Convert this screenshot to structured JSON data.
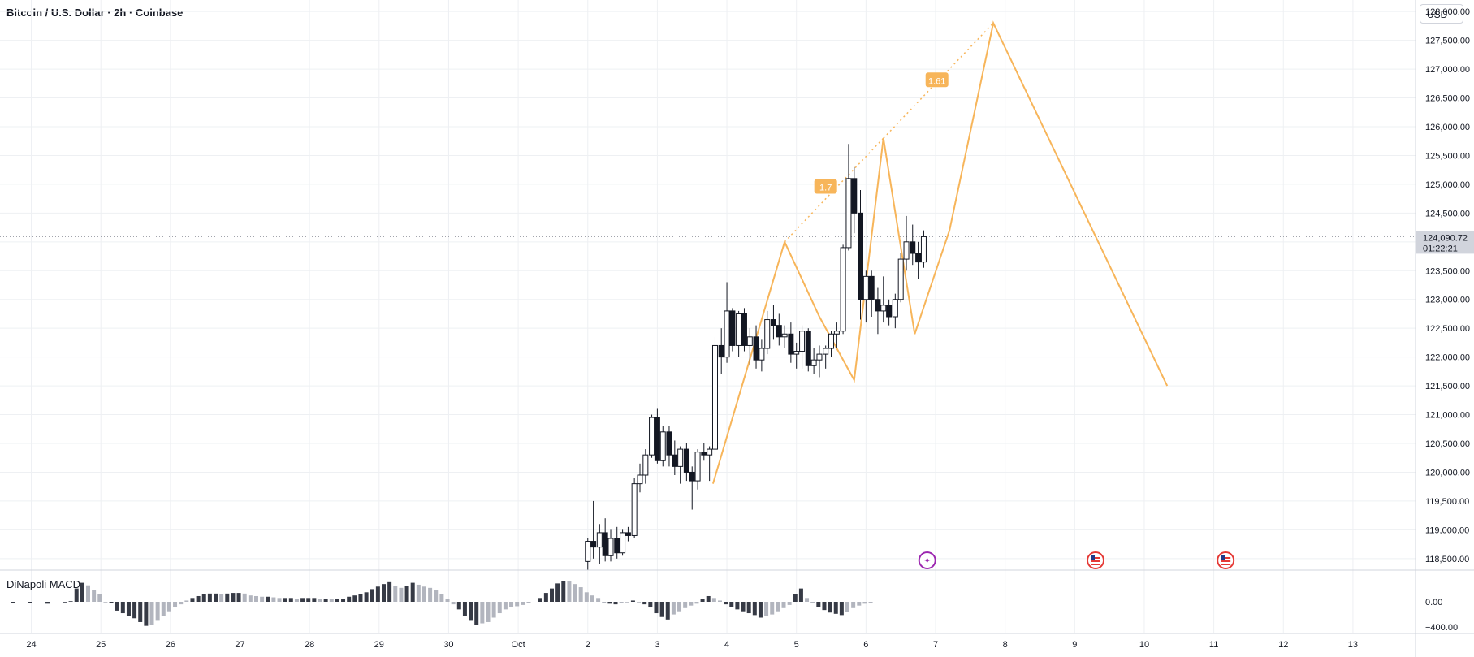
{
  "header": {
    "title": "Bitcoin / U.S. Dollar · 2h · Coinbase"
  },
  "currency_button": "USD",
  "indicator": {
    "label": "DiNapoli MACD"
  },
  "price_marker": {
    "price": "124,090.72",
    "countdown": "01:22:21"
  },
  "colors": {
    "pattern": "#f7b55a",
    "up": "#ffffff",
    "down": "#131722",
    "hist_dark": "#363a45",
    "hist_light": "#b2b5be",
    "grid": "#eef0f3"
  },
  "chart_data": [
    {
      "type": "candlestick",
      "title": "Bitcoin / U.S. Dollar · 2h · Coinbase",
      "y_ticks": [
        "128,000.00",
        "127,500.00",
        "127,000.00",
        "126,500.00",
        "126,000.00",
        "125,500.00",
        "125,000.00",
        "124,500.00",
        "124,000.00",
        "123,500.00",
        "123,000.00",
        "122,500.00",
        "122,000.00",
        "121,500.00",
        "121,000.00",
        "120,500.00",
        "120,000.00",
        "119,500.00",
        "119,000.00",
        "118,500.00"
      ],
      "y_range": [
        118300,
        128200
      ],
      "x_ticks": [
        "24",
        "25",
        "26",
        "27",
        "28",
        "29",
        "30",
        "Oct",
        "2",
        "3",
        "4",
        "5",
        "6",
        "7",
        "8",
        "9",
        "10",
        "11",
        "12",
        "13"
      ],
      "x_tick_values": [
        24,
        25,
        26,
        27,
        28,
        29,
        30,
        31,
        32,
        33,
        34,
        35,
        36,
        37,
        38,
        39,
        40,
        41,
        42,
        43
      ],
      "x_range": [
        23.55,
        43.9
      ],
      "grid": true,
      "candles": [
        {
          "x": 32.0,
          "o": 118450,
          "h": 118850,
          "l": 118300,
          "c": 118800
        },
        {
          "x": 32.08,
          "o": 118800,
          "h": 119500,
          "l": 118500,
          "c": 118700
        },
        {
          "x": 32.17,
          "o": 118700,
          "h": 119100,
          "l": 118400,
          "c": 118950
        },
        {
          "x": 32.25,
          "o": 118950,
          "h": 119200,
          "l": 118450,
          "c": 118550
        },
        {
          "x": 32.33,
          "o": 118550,
          "h": 119000,
          "l": 118450,
          "c": 118850
        },
        {
          "x": 32.42,
          "o": 118850,
          "h": 119050,
          "l": 118500,
          "c": 118600
        },
        {
          "x": 32.5,
          "o": 118600,
          "h": 119000,
          "l": 118550,
          "c": 118950
        },
        {
          "x": 32.58,
          "o": 118950,
          "h": 119050,
          "l": 118800,
          "c": 118900
        },
        {
          "x": 32.67,
          "o": 118900,
          "h": 119900,
          "l": 118850,
          "c": 119800
        },
        {
          "x": 32.75,
          "o": 119800,
          "h": 120150,
          "l": 119650,
          "c": 119950
        },
        {
          "x": 32.83,
          "o": 119950,
          "h": 120400,
          "l": 119800,
          "c": 120300
        },
        {
          "x": 32.92,
          "o": 120300,
          "h": 121000,
          "l": 120250,
          "c": 120950
        },
        {
          "x": 33.0,
          "o": 120950,
          "h": 121100,
          "l": 120150,
          "c": 120200
        },
        {
          "x": 33.08,
          "o": 120200,
          "h": 120800,
          "l": 120100,
          "c": 120700
        },
        {
          "x": 33.17,
          "o": 120700,
          "h": 120800,
          "l": 120100,
          "c": 120300
        },
        {
          "x": 33.25,
          "o": 120300,
          "h": 120550,
          "l": 119950,
          "c": 120100
        },
        {
          "x": 33.33,
          "o": 120100,
          "h": 120450,
          "l": 119800,
          "c": 120400
        },
        {
          "x": 33.42,
          "o": 120400,
          "h": 120500,
          "l": 119850,
          "c": 120000
        },
        {
          "x": 33.5,
          "o": 120000,
          "h": 120100,
          "l": 119350,
          "c": 119850
        },
        {
          "x": 33.58,
          "o": 119850,
          "h": 120400,
          "l": 119700,
          "c": 120350
        },
        {
          "x": 33.67,
          "o": 120350,
          "h": 120500,
          "l": 120200,
          "c": 120300
        },
        {
          "x": 33.75,
          "o": 120300,
          "h": 120450,
          "l": 119850,
          "c": 120400
        },
        {
          "x": 33.83,
          "o": 120400,
          "h": 122350,
          "l": 120300,
          "c": 122200
        },
        {
          "x": 33.92,
          "o": 122200,
          "h": 122500,
          "l": 121700,
          "c": 122000
        },
        {
          "x": 34.0,
          "o": 122000,
          "h": 123300,
          "l": 121900,
          "c": 122800
        },
        {
          "x": 34.08,
          "o": 122800,
          "h": 122850,
          "l": 122100,
          "c": 122200
        },
        {
          "x": 34.17,
          "o": 122200,
          "h": 122800,
          "l": 122000,
          "c": 122750
        },
        {
          "x": 34.25,
          "o": 122750,
          "h": 122850,
          "l": 122100,
          "c": 122200
        },
        {
          "x": 34.33,
          "o": 122200,
          "h": 122500,
          "l": 121850,
          "c": 122350
        },
        {
          "x": 34.42,
          "o": 122350,
          "h": 122550,
          "l": 121800,
          "c": 121950
        },
        {
          "x": 34.5,
          "o": 121950,
          "h": 122300,
          "l": 121750,
          "c": 122150
        },
        {
          "x": 34.58,
          "o": 122150,
          "h": 122800,
          "l": 122050,
          "c": 122650
        },
        {
          "x": 34.67,
          "o": 122650,
          "h": 122900,
          "l": 122300,
          "c": 122550
        },
        {
          "x": 34.75,
          "o": 122550,
          "h": 122750,
          "l": 122200,
          "c": 122350
        },
        {
          "x": 34.83,
          "o": 122350,
          "h": 122550,
          "l": 122150,
          "c": 122400
        },
        {
          "x": 34.92,
          "o": 122400,
          "h": 122600,
          "l": 121900,
          "c": 122050
        },
        {
          "x": 35.0,
          "o": 122050,
          "h": 122250,
          "l": 121800,
          "c": 122100
        },
        {
          "x": 35.08,
          "o": 122100,
          "h": 122550,
          "l": 121800,
          "c": 122450
        },
        {
          "x": 35.17,
          "o": 122450,
          "h": 122500,
          "l": 121750,
          "c": 121850
        },
        {
          "x": 35.25,
          "o": 121850,
          "h": 122150,
          "l": 121700,
          "c": 121950
        },
        {
          "x": 35.33,
          "o": 121950,
          "h": 122200,
          "l": 121650,
          "c": 122050
        },
        {
          "x": 35.42,
          "o": 122050,
          "h": 122200,
          "l": 121800,
          "c": 122150
        },
        {
          "x": 35.5,
          "o": 122150,
          "h": 122450,
          "l": 122000,
          "c": 122400
        },
        {
          "x": 35.58,
          "o": 122400,
          "h": 122600,
          "l": 122150,
          "c": 122450
        },
        {
          "x": 35.67,
          "o": 122450,
          "h": 123950,
          "l": 122400,
          "c": 123900
        },
        {
          "x": 35.75,
          "o": 123900,
          "h": 125700,
          "l": 123850,
          "c": 125100
        },
        {
          "x": 35.83,
          "o": 125100,
          "h": 125300,
          "l": 124150,
          "c": 124500
        },
        {
          "x": 35.92,
          "o": 124500,
          "h": 124900,
          "l": 122650,
          "c": 123000
        },
        {
          "x": 36.0,
          "o": 123000,
          "h": 123500,
          "l": 122600,
          "c": 123400
        },
        {
          "x": 36.08,
          "o": 123400,
          "h": 123500,
          "l": 122700,
          "c": 123000
        },
        {
          "x": 36.17,
          "o": 123000,
          "h": 123200,
          "l": 122400,
          "c": 122800
        },
        {
          "x": 36.25,
          "o": 122800,
          "h": 123400,
          "l": 122600,
          "c": 122900
        },
        {
          "x": 36.33,
          "o": 122900,
          "h": 123000,
          "l": 122550,
          "c": 122700
        },
        {
          "x": 36.42,
          "o": 122700,
          "h": 123100,
          "l": 122500,
          "c": 123000
        },
        {
          "x": 36.5,
          "o": 123000,
          "h": 123800,
          "l": 122950,
          "c": 123700
        },
        {
          "x": 36.58,
          "o": 123700,
          "h": 124450,
          "l": 123500,
          "c": 124000
        },
        {
          "x": 36.67,
          "o": 124000,
          "h": 124300,
          "l": 123600,
          "c": 123800
        },
        {
          "x": 36.75,
          "o": 123800,
          "h": 124000,
          "l": 123350,
          "c": 123650
        },
        {
          "x": 36.83,
          "o": 123650,
          "h": 124200,
          "l": 123550,
          "c": 124090
        }
      ],
      "pattern": {
        "points": [
          [
            33.8,
            119800
          ],
          [
            34.83,
            124000
          ],
          [
            35.33,
            122700
          ],
          [
            35.83,
            121600
          ],
          [
            36.25,
            125800
          ],
          [
            36.7,
            122400
          ],
          [
            37.2,
            124200
          ],
          [
            37.83,
            127800
          ],
          [
            40.33,
            121500
          ]
        ],
        "dotted": [
          [
            [
              34.83,
              124000
            ],
            [
              36.25,
              125800
            ]
          ],
          [
            [
              36.25,
              125800
            ],
            [
              37.83,
              127800
            ]
          ]
        ],
        "labels": [
          {
            "text": "1.7",
            "x": 35.42,
            "y": 124950
          },
          {
            "text": "1.61",
            "x": 37.02,
            "y": 126800
          }
        ]
      },
      "current_price": 124090.72,
      "events": [
        {
          "x": 36.88,
          "kind": "spark"
        },
        {
          "x": 39.3,
          "kind": "us-flag"
        },
        {
          "x": 41.17,
          "kind": "us-flag"
        }
      ]
    },
    {
      "type": "bar",
      "title": "DiNapoli MACD",
      "y_ticks": [
        "0.00",
        "−400.00"
      ],
      "y_range": [
        -500,
        500
      ],
      "grid": true,
      "values": [
        0,
        -15,
        0,
        0,
        -20,
        0,
        0,
        -30,
        0,
        0,
        -10,
        10,
        210,
        300,
        260,
        180,
        120,
        -10,
        -20,
        -140,
        -180,
        -220,
        -260,
        -320,
        -380,
        -360,
        -300,
        -220,
        -150,
        -90,
        -40,
        20,
        60,
        90,
        120,
        130,
        130,
        120,
        130,
        140,
        140,
        130,
        100,
        90,
        80,
        80,
        70,
        60,
        60,
        60,
        50,
        60,
        60,
        60,
        40,
        50,
        40,
        40,
        50,
        80,
        100,
        120,
        150,
        200,
        240,
        280,
        310,
        250,
        220,
        250,
        300,
        270,
        240,
        220,
        190,
        120,
        50,
        -40,
        -120,
        -220,
        -300,
        -360,
        -340,
        -320,
        -250,
        -180,
        -120,
        -90,
        -70,
        -50,
        -20,
        0,
        60,
        140,
        210,
        290,
        330,
        320,
        280,
        230,
        150,
        100,
        60,
        -20,
        -30,
        -40,
        -20,
        -10,
        20,
        -10,
        -40,
        -90,
        -180,
        -240,
        -280,
        -200,
        -150,
        -100,
        -60,
        -30,
        40,
        90,
        60,
        20,
        -40,
        -80,
        -120,
        -150,
        -180,
        -210,
        -250,
        -230,
        -200,
        -150,
        -100,
        -50,
        120,
        210,
        60,
        -20,
        -80,
        -130,
        -170,
        -190,
        -210,
        -160,
        -100,
        -60,
        -30,
        -20
      ]
    }
  ]
}
